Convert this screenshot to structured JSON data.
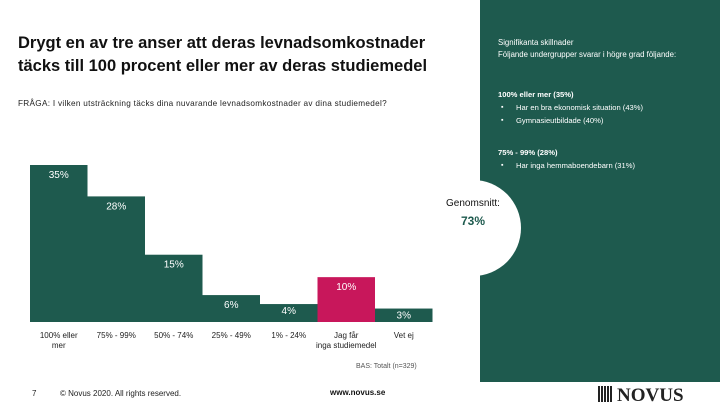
{
  "title": "Drygt en av tre anser att deras levnadsomkostnader täcks till 100 procent eller mer av deras studiemedel",
  "question": "FRÅGA: I vilken utsträckning täcks dina nuvarande levnadsomkostnader av dina studiemedel?",
  "right_panel": {
    "heading_line1": "Signifikanta skillnader",
    "heading_line2": "Följande undergrupper svarar i högre grad följande:",
    "block1_head": "100% eller mer (35%)",
    "block1_items": [
      "Har en bra ekonomisk situation (43%)",
      "Gymnasieutbildade (40%)"
    ],
    "block2_head": "75% - 99% (28%)",
    "block2_items": [
      "Har inga hemmaboendebarn (31%)"
    ],
    "bullet": "▪"
  },
  "average": {
    "label": "Genomsnitt:",
    "value": "73%"
  },
  "base": "BAS: Totalt (n=329)",
  "footer": {
    "page": "7",
    "copyright": "© Novus 2020. All rights reserved.",
    "website": "www.novus.se",
    "logo": "NOVUS"
  },
  "chart_data": {
    "type": "bar",
    "title": "",
    "xlabel": "",
    "ylabel": "",
    "ylim": [
      0,
      35
    ],
    "categories": [
      "100% eller mer",
      "75% - 99%",
      "50% - 74%",
      "25% - 49%",
      "1% - 24%",
      "Jag får inga studiemedel",
      "Vet ej"
    ],
    "values": [
      35,
      28,
      15,
      6,
      4,
      10,
      3
    ],
    "labels": [
      "35%",
      "28%",
      "15%",
      "6%",
      "4%",
      "10%",
      "3%"
    ],
    "colors": [
      "#1e5a4e",
      "#1e5a4e",
      "#1e5a4e",
      "#1e5a4e",
      "#1e5a4e",
      "#c8175b",
      "#1e5a4e"
    ]
  }
}
